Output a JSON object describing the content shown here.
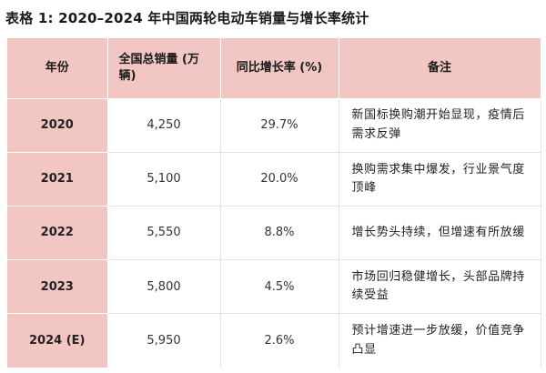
{
  "title": "表格 1: 2020–2024 年中国两轮电动车销量与增长率统计",
  "table": {
    "headers": {
      "year": "年份",
      "sales": "全国总销量 (万辆)",
      "growth": "同比增长率 (%)",
      "note": "备注"
    },
    "rows": [
      {
        "year": "2020",
        "sales": "4,250",
        "growth": "29.7%",
        "note": "新国标换购潮开始显现，疫情后需求反弹"
      },
      {
        "year": "2021",
        "sales": "5,100",
        "growth": "20.0%",
        "note": "换购需求集中爆发，行业景气度顶峰"
      },
      {
        "year": "2022",
        "sales": "5,550",
        "growth": "8.8%",
        "note": "增长势头持续，但增速有所放缓"
      },
      {
        "year": "2023",
        "sales": "5,800",
        "growth": "4.5%",
        "note": "市场回归稳健增长，头部品牌持续受益"
      },
      {
        "year": "2024 (E)",
        "sales": "5,950",
        "growth": "2.6%",
        "note": "预计增速进一步放缓，价值竞争凸显"
      }
    ]
  }
}
